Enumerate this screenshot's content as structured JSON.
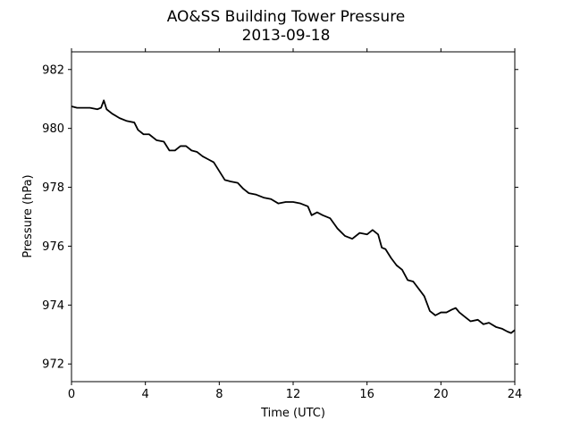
{
  "chart_data": {
    "type": "line",
    "title": "AO&SS Building Tower Pressure",
    "subtitle": "2013-09-18",
    "xlabel": "Time (UTC)",
    "ylabel": "Pressure (hPa)",
    "xlim": [
      0,
      24
    ],
    "ylim": [
      971.4,
      982.6
    ],
    "xticks": [
      0,
      4,
      8,
      12,
      16,
      20,
      24
    ],
    "yticks": [
      972,
      974,
      976,
      978,
      980,
      982
    ],
    "grid": false,
    "line_color": "#000000",
    "series": [
      {
        "x": [
          0,
          0.3,
          0.6,
          1.0,
          1.4,
          1.6,
          1.75,
          1.9,
          2.2,
          2.6,
          3.0,
          3.4,
          3.6,
          3.9,
          4.2,
          4.6,
          5.0,
          5.3,
          5.6,
          5.9,
          6.2,
          6.5,
          6.8,
          7.1,
          7.4,
          7.7,
          8.0,
          8.3,
          8.6,
          9.0,
          9.3,
          9.6,
          10.0,
          10.4,
          10.8,
          11.2,
          11.6,
          12.0,
          12.4,
          12.8,
          13.0,
          13.3,
          13.6,
          14.0,
          14.4,
          14.8,
          15.2,
          15.6,
          16.0,
          16.3,
          16.6,
          16.8,
          17.0,
          17.3,
          17.6,
          17.9,
          18.2,
          18.5,
          18.8,
          19.1,
          19.4,
          19.7,
          20.0,
          20.3,
          20.6,
          20.8,
          21.0,
          21.3,
          21.6,
          22.0,
          22.3,
          22.6,
          23.0,
          23.3,
          23.6,
          23.8,
          24.0
        ],
        "y": [
          980.75,
          980.7,
          980.7,
          980.7,
          980.65,
          980.7,
          980.95,
          980.65,
          980.5,
          980.35,
          980.25,
          980.2,
          979.95,
          979.8,
          979.8,
          979.6,
          979.55,
          979.25,
          979.25,
          979.4,
          979.4,
          979.25,
          979.2,
          979.05,
          978.95,
          978.85,
          978.55,
          978.25,
          978.2,
          978.15,
          977.95,
          977.8,
          977.75,
          977.65,
          977.6,
          977.45,
          977.5,
          977.5,
          977.45,
          977.35,
          977.05,
          977.15,
          977.05,
          976.95,
          976.6,
          976.35,
          976.25,
          976.45,
          976.4,
          976.55,
          976.4,
          975.95,
          975.9,
          975.6,
          975.35,
          975.2,
          974.85,
          974.8,
          974.55,
          974.3,
          973.8,
          973.65,
          973.75,
          973.75,
          973.85,
          973.9,
          973.75,
          973.6,
          973.45,
          973.5,
          973.35,
          973.4,
          973.25,
          973.2,
          973.1,
          973.05,
          973.15
        ]
      }
    ]
  }
}
